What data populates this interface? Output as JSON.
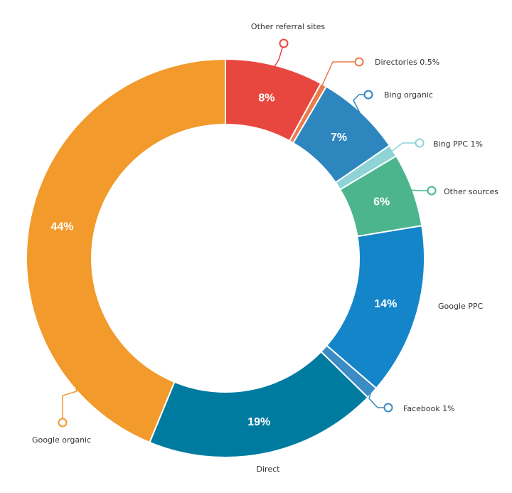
{
  "chart_data": {
    "type": "pie",
    "variant": "donut",
    "title": "",
    "slices": [
      {
        "name": "Other referral sites",
        "value": 8,
        "color": "#E8473F",
        "pct_label": "8%",
        "callout": "Other referral sites"
      },
      {
        "name": "Directories",
        "value": 0.5,
        "color": "#EC7A4A",
        "pct_label": "",
        "callout": "Directories 0.5%"
      },
      {
        "name": "Bing organic",
        "value": 7,
        "color": "#2E86BE",
        "pct_label": "7%",
        "callout": "Bing organic"
      },
      {
        "name": "Bing PPC",
        "value": 1,
        "color": "#8ED3D6",
        "pct_label": "",
        "callout": "Bing PPC 1%"
      },
      {
        "name": "Other sources",
        "value": 6,
        "color": "#4DB58E",
        "pct_label": "6%",
        "callout": "Other sources"
      },
      {
        "name": "Google PPC",
        "value": 14,
        "color": "#1385C8",
        "pct_label": "14%",
        "callout": "Google PPC"
      },
      {
        "name": "Facebook",
        "value": 1,
        "color": "#3B8CC4",
        "pct_label": "",
        "callout": "Facebook 1%"
      },
      {
        "name": "Direct",
        "value": 19,
        "color": "#007BA0",
        "pct_label": "19%",
        "callout": "Direct"
      },
      {
        "name": "Google organic",
        "value": 44,
        "color": "#F29A2B",
        "pct_label": "44%",
        "callout": "Google organic"
      }
    ]
  }
}
